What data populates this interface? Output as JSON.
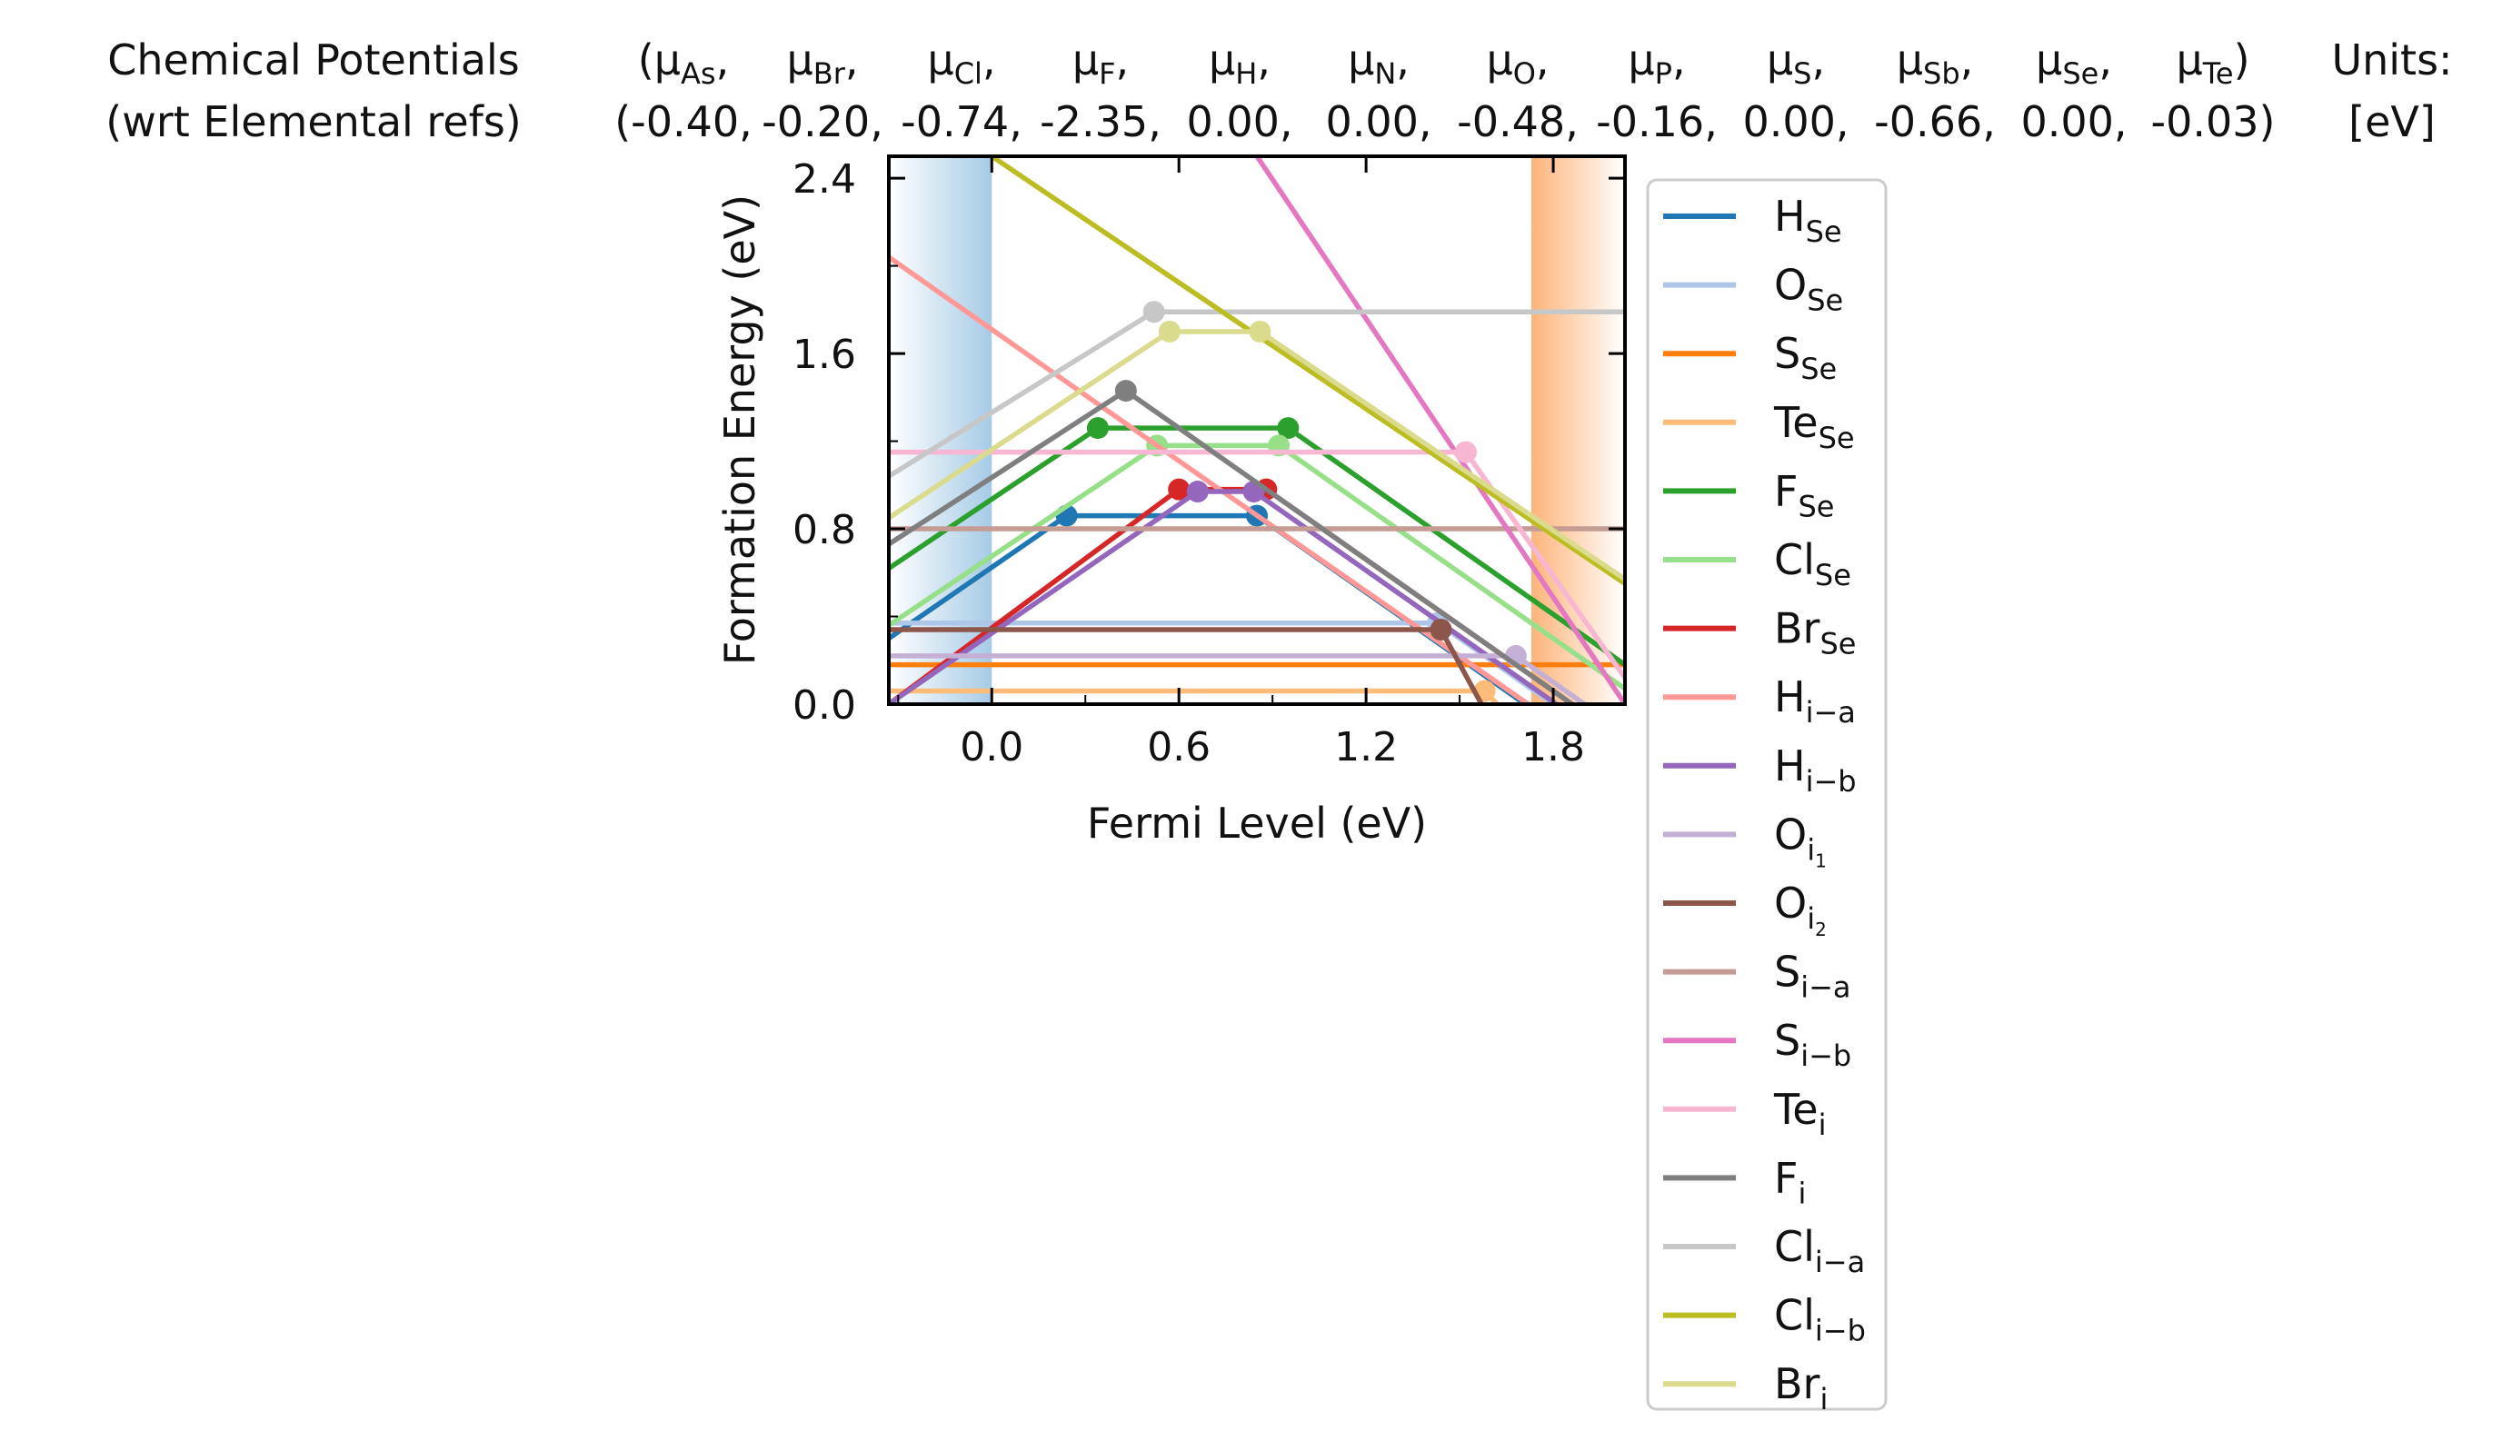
{
  "header": {
    "title_line1": "Chemical Potentials",
    "title_line2": "(wrt Elemental refs)",
    "units_label": "Units:",
    "units_value": "[eV]",
    "potentials": [
      {
        "sym": "μ",
        "sub": "As",
        "value": "-0.40"
      },
      {
        "sym": "μ",
        "sub": "Br",
        "value": "-0.20"
      },
      {
        "sym": "μ",
        "sub": "Cl",
        "value": "-0.74"
      },
      {
        "sym": "μ",
        "sub": "F",
        "value": "-2.35"
      },
      {
        "sym": "μ",
        "sub": "H",
        "value": "0.00"
      },
      {
        "sym": "μ",
        "sub": "N",
        "value": "0.00"
      },
      {
        "sym": "μ",
        "sub": "O",
        "value": "-0.48"
      },
      {
        "sym": "μ",
        "sub": "P",
        "value": "-0.16"
      },
      {
        "sym": "μ",
        "sub": "S",
        "value": "0.00"
      },
      {
        "sym": "μ",
        "sub": "Sb",
        "value": "-0.66"
      },
      {
        "sym": "μ",
        "sub": "Se",
        "value": "0.00"
      },
      {
        "sym": "μ",
        "sub": "Te",
        "value": "-0.03"
      }
    ]
  },
  "chart_data": {
    "type": "line",
    "xlabel": "Fermi Level (eV)",
    "ylabel": "Formation Energy (eV)",
    "xlim": [
      -0.33,
      2.03
    ],
    "ylim": [
      0.0,
      2.5
    ],
    "xticks": [
      0.0,
      0.6,
      1.2,
      1.8
    ],
    "xtick_labels": [
      "0.0",
      "0.6",
      "1.2",
      "1.8"
    ],
    "yticks": [
      0.0,
      0.8,
      1.6,
      2.4
    ],
    "ytick_labels": [
      "0.0",
      "0.8",
      "1.6",
      "2.4"
    ],
    "bands": [
      {
        "name": "valence-band",
        "from": -0.33,
        "to": 0.0,
        "color": "#a6cbe6"
      },
      {
        "name": "conduction-band",
        "from": 1.73,
        "to": 2.03,
        "color": "#fdb47a"
      }
    ],
    "legend_position": "right, outside plot",
    "series": [
      {
        "name": "H",
        "sub": "Se",
        "sup": "",
        "color": "#1f77b4",
        "points": [
          [
            -0.33,
            0.3
          ],
          [
            0.24,
            0.86
          ],
          [
            0.85,
            0.86
          ],
          [
            1.55,
            0.16
          ],
          [
            1.73,
            -0.02
          ]
        ],
        "markers": [
          [
            0.24,
            0.86
          ],
          [
            0.85,
            0.86
          ]
        ]
      },
      {
        "name": "O",
        "sub": "Se",
        "sup": "",
        "color": "#aec7e8",
        "points": [
          [
            -0.33,
            0.37
          ],
          [
            1.43,
            0.37
          ],
          [
            1.7,
            0.1
          ],
          [
            1.8,
            0.0
          ]
        ],
        "markers": [
          [
            1.43,
            0.37
          ]
        ]
      },
      {
        "name": "S",
        "sub": "Se",
        "sup": "",
        "color": "#ff7f0e",
        "points": [
          [
            -0.33,
            0.18
          ],
          [
            2.03,
            0.18
          ]
        ],
        "markers": []
      },
      {
        "name": "Te",
        "sub": "Se",
        "sup": "",
        "color": "#ffbb78",
        "points": [
          [
            -0.33,
            0.06
          ],
          [
            1.58,
            0.06
          ],
          [
            1.62,
            0.0
          ]
        ],
        "markers": [
          [
            1.58,
            0.06
          ]
        ]
      },
      {
        "name": "F",
        "sub": "Se",
        "sup": "",
        "color": "#2ca02c",
        "points": [
          [
            -0.33,
            0.62
          ],
          [
            0.34,
            1.26
          ],
          [
            0.95,
            1.26
          ],
          [
            2.03,
            0.18
          ]
        ],
        "markers": [
          [
            0.34,
            1.26
          ],
          [
            0.95,
            1.26
          ]
        ]
      },
      {
        "name": "Cl",
        "sub": "Se",
        "sup": "",
        "color": "#98df8a",
        "points": [
          [
            -0.33,
            0.36
          ],
          [
            0.53,
            1.18
          ],
          [
            0.92,
            1.18
          ],
          [
            2.03,
            0.07
          ]
        ],
        "markers": [
          [
            0.53,
            1.18
          ],
          [
            0.92,
            1.18
          ]
        ]
      },
      {
        "name": "Br",
        "sub": "Se",
        "sup": "",
        "color": "#d62728",
        "points": [
          [
            -0.33,
            0.0
          ],
          [
            0.6,
            0.98
          ],
          [
            0.88,
            0.98
          ],
          [
            1.8,
            0.06
          ],
          [
            1.86,
            0.0
          ]
        ],
        "markers": [
          [
            0.6,
            0.98
          ],
          [
            0.88,
            0.98
          ]
        ]
      },
      {
        "name": "H",
        "sub": "i−a",
        "sup": "",
        "color": "#ff9896",
        "points": [
          [
            -0.33,
            2.04
          ],
          [
            0.53,
            1.18
          ],
          [
            0.75,
            0.96
          ],
          [
            1.72,
            0.0
          ]
        ],
        "markers": []
      },
      {
        "name": "H",
        "sub": "i−b",
        "sup": "",
        "color": "#9467bd",
        "points": [
          [
            -0.33,
            0.0
          ],
          [
            0.66,
            0.97
          ],
          [
            0.84,
            0.97
          ],
          [
            1.81,
            0.0
          ]
        ],
        "markers": [
          [
            0.66,
            0.97
          ],
          [
            0.84,
            0.97
          ]
        ]
      },
      {
        "name": "O",
        "sub": "i",
        "subsub": "1",
        "sup": "",
        "color": "#c5b0d5",
        "points": [
          [
            -0.33,
            0.22
          ],
          [
            1.68,
            0.22
          ],
          [
            1.75,
            0.15
          ],
          [
            1.9,
            0.0
          ]
        ],
        "markers": [
          [
            1.68,
            0.22
          ]
        ]
      },
      {
        "name": "O",
        "sub": "i",
        "subsub": "2",
        "sup": "",
        "color": "#8c564b",
        "points": [
          [
            -0.33,
            0.34
          ],
          [
            1.44,
            0.34
          ],
          [
            1.57,
            0.0
          ]
        ],
        "markers": [
          [
            1.44,
            0.34
          ]
        ]
      },
      {
        "name": "S",
        "sub": "i−a",
        "sup": "",
        "color": "#c49c94",
        "points": [
          [
            -0.33,
            0.8
          ],
          [
            2.03,
            0.8
          ]
        ],
        "markers": []
      },
      {
        "name": "S",
        "sub": "i−b",
        "sup": "",
        "color": "#e377c2",
        "points": [
          [
            0.85,
            2.5
          ],
          [
            2.03,
            0.0
          ]
        ],
        "markers": []
      },
      {
        "name": "Te",
        "sub": "i",
        "sup": "",
        "color": "#f7b6d2",
        "points": [
          [
            -0.33,
            1.15
          ],
          [
            1.52,
            1.15
          ],
          [
            2.03,
            0.12
          ]
        ],
        "markers": [
          [
            1.52,
            1.15
          ]
        ]
      },
      {
        "name": "F",
        "sub": "i",
        "sup": "",
        "color": "#7f7f7f",
        "points": [
          [
            -0.33,
            0.73
          ],
          [
            0.43,
            1.43
          ],
          [
            1.9,
            -0.04
          ]
        ],
        "markers": [
          [
            0.43,
            1.43
          ]
        ]
      },
      {
        "name": "Cl",
        "sub": "i−a",
        "sup": "",
        "color": "#c7c7c7",
        "points": [
          [
            -0.33,
            1.04
          ],
          [
            0.52,
            1.79
          ],
          [
            2.03,
            1.79
          ]
        ],
        "markers": [
          [
            0.52,
            1.79
          ]
        ]
      },
      {
        "name": "Cl",
        "sub": "i−b",
        "sup": "",
        "color": "#bcbd22",
        "points": [
          [
            0.0,
            2.5
          ],
          [
            2.03,
            0.55
          ]
        ],
        "markers": []
      },
      {
        "name": "Br",
        "sub": "i",
        "sup": "",
        "color": "#dbdb8d",
        "points": [
          [
            -0.33,
            0.85
          ],
          [
            0.57,
            1.7
          ],
          [
            0.86,
            1.7
          ],
          [
            2.03,
            0.57
          ]
        ],
        "markers": [
          [
            0.57,
            1.7
          ],
          [
            0.86,
            1.7
          ]
        ]
      }
    ]
  }
}
